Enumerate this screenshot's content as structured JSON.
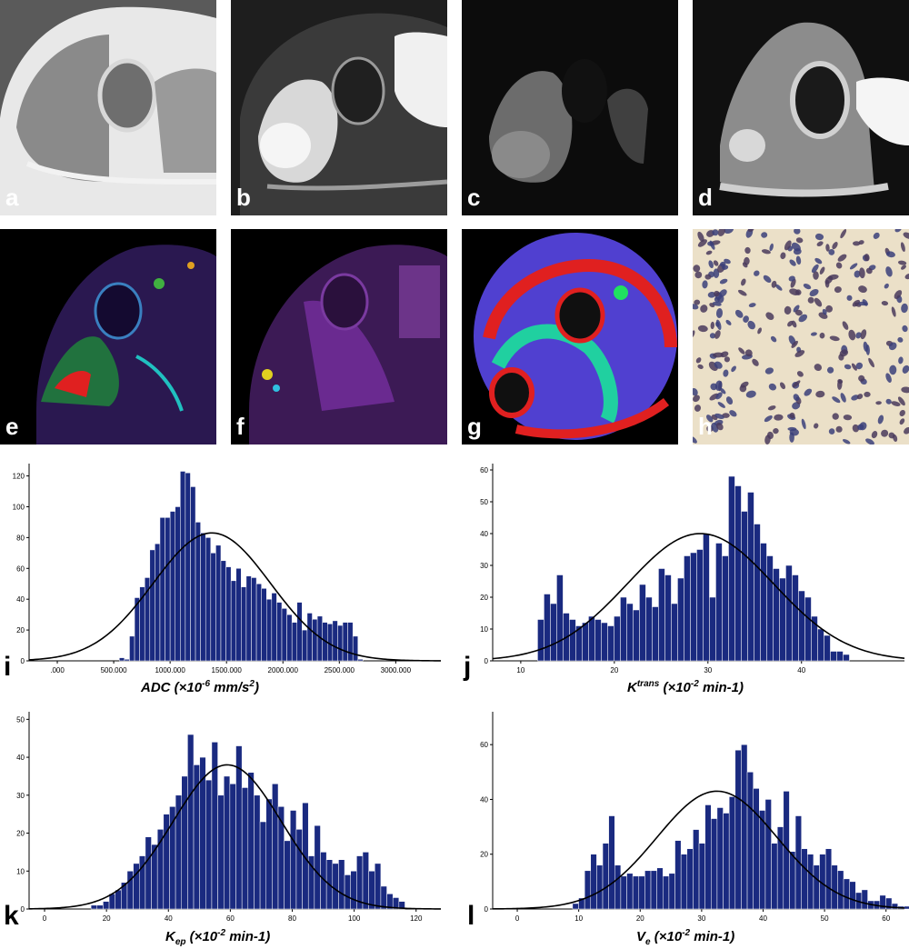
{
  "panels": [
    {
      "label": "a",
      "bg": "#7a7a7a"
    },
    {
      "label": "b",
      "bg": "#2a2a2a"
    },
    {
      "label": "c",
      "bg": "#0d0d0d"
    },
    {
      "label": "d",
      "bg": "#111111"
    },
    {
      "label": "e",
      "bg": "#000000"
    },
    {
      "label": "f",
      "bg": "#000000"
    },
    {
      "label": "g",
      "bg": "#000000"
    },
    {
      "label": "h",
      "bg": "#e9ddc3"
    }
  ],
  "colors": {
    "bar": "#1a2a80",
    "bar_edge": "#ffffff",
    "curve": "#000000"
  },
  "chart_data": [
    {
      "type": "bar",
      "label": "i",
      "xlabel_main": "ADC (×10",
      "xlabel_sup": "-6",
      "xlabel_rest": " mm/s",
      "xlabel_sup2": "2",
      "xlabel_end": ")",
      "xlim": [
        -250,
        3400
      ],
      "ylim": [
        0,
        128
      ],
      "xticks": [
        ".000",
        "500.000",
        "1000.000",
        "1500.000",
        "2000.000",
        "2500.000",
        "3000.000"
      ],
      "xtick_values": [
        0,
        500,
        1000,
        1500,
        2000,
        2500,
        3000
      ],
      "yticks": [
        0,
        20,
        40,
        60,
        80,
        100,
        120
      ],
      "bin_start": 550,
      "bin_width": 45,
      "values": [
        2,
        1,
        16,
        41,
        48,
        54,
        72,
        76,
        93,
        93,
        97,
        100,
        123,
        122,
        113,
        90,
        83,
        80,
        70,
        75,
        65,
        61,
        52,
        60,
        48,
        55,
        54,
        50,
        47,
        40,
        44,
        38,
        34,
        30,
        25,
        38,
        20,
        31,
        27,
        29,
        25,
        24,
        26,
        23,
        25,
        25,
        16,
        1
      ],
      "curve": {
        "mean": 1370,
        "sd": 520,
        "peak": 83
      }
    },
    {
      "type": "bar",
      "label": "j",
      "xlabel_main": "K",
      "xlabel_sup": "trans",
      "xlabel_rest": " (×10",
      "xlabel_sup2": "-2",
      "xlabel_end": " min-1)",
      "xlim": [
        7,
        51
      ],
      "ylim": [
        0,
        62
      ],
      "xticks": [
        "10",
        "20",
        "30",
        "40"
      ],
      "xtick_values": [
        10,
        20,
        30,
        40
      ],
      "yticks": [
        0,
        10,
        20,
        30,
        40,
        50,
        60
      ],
      "bin_start": 11.8,
      "bin_width": 0.68,
      "values": [
        13,
        21,
        18,
        27,
        15,
        13,
        11,
        12,
        14,
        13,
        12,
        11,
        14,
        20,
        18,
        16,
        24,
        20,
        17,
        29,
        27,
        18,
        26,
        33,
        34,
        35,
        40,
        20,
        37,
        33,
        58,
        55,
        47,
        53,
        43,
        37,
        33,
        29,
        26,
        30,
        27,
        22,
        20,
        14,
        10,
        8,
        3,
        3,
        2
      ],
      "curve": {
        "mean": 29.2,
        "sd": 7.8,
        "peak": 40
      }
    },
    {
      "type": "bar",
      "label": "k",
      "xlabel_main": "K",
      "xlabel_sub": "ep",
      "xlabel_rest": " (×10",
      "xlabel_sup2": "-2",
      "xlabel_end": " min-1)",
      "xlim": [
        -5,
        128
      ],
      "ylim": [
        0,
        52
      ],
      "xticks": [
        "0",
        "20",
        "40",
        "60",
        "80",
        "100",
        "120"
      ],
      "xtick_values": [
        0,
        20,
        40,
        60,
        80,
        100,
        120
      ],
      "yticks": [
        0,
        10,
        20,
        30,
        40,
        50
      ],
      "bin_start": 15,
      "bin_width": 1.95,
      "values": [
        1,
        1,
        2,
        4,
        5,
        7,
        10,
        12,
        14,
        19,
        17,
        21,
        25,
        27,
        30,
        35,
        46,
        38,
        40,
        34,
        44,
        30,
        35,
        33,
        43,
        32,
        36,
        30,
        23,
        29,
        33,
        27,
        18,
        26,
        21,
        28,
        14,
        22,
        15,
        13,
        12,
        13,
        9,
        10,
        14,
        15,
        10,
        12,
        6,
        4,
        3,
        2
      ],
      "curve": {
        "mean": 59,
        "sd": 17.5,
        "peak": 38
      }
    },
    {
      "type": "bar",
      "label": "l",
      "xlabel_main": "V",
      "xlabel_sub": "e",
      "xlabel_rest": " (×10",
      "xlabel_sup2": "-2",
      "xlabel_end": " min-1)",
      "xlim": [
        -4,
        63
      ],
      "ylim": [
        0,
        72
      ],
      "xticks": [
        "0",
        "10",
        "20",
        "30",
        "40",
        "50",
        "60"
      ],
      "xtick_values": [
        0,
        10,
        20,
        30,
        40,
        50,
        60
      ],
      "yticks": [
        0,
        20,
        40,
        60
      ],
      "bin_start": 9,
      "bin_width": 0.98,
      "values": [
        2,
        4,
        14,
        20,
        16,
        24,
        34,
        16,
        12,
        13,
        12,
        12,
        14,
        14,
        15,
        12,
        13,
        25,
        20,
        22,
        29,
        24,
        38,
        33,
        37,
        35,
        41,
        58,
        60,
        50,
        44,
        36,
        40,
        24,
        30,
        43,
        21,
        34,
        22,
        20,
        16,
        20,
        22,
        16,
        14,
        11,
        10,
        6,
        7,
        3,
        3,
        5,
        4,
        2,
        1,
        1,
        1,
        1
      ],
      "curve": {
        "mean": 32.5,
        "sd": 9.8,
        "peak": 43
      }
    }
  ]
}
